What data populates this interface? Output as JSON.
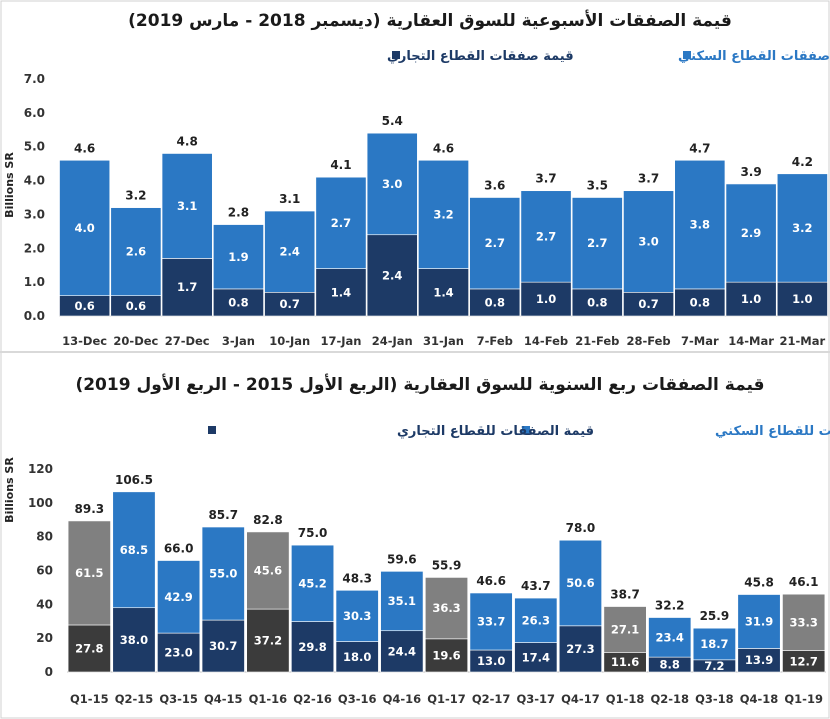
{
  "colors": {
    "residential": "#2b78c4",
    "commercial": "#1d3a66",
    "residential_q1": "#808080",
    "commercial_q1": "#3b3b3b",
    "axis": "#bfbfbf",
    "divider": "#d9d9d9"
  },
  "chart_data": [
    {
      "type": "bar",
      "stacked": true,
      "title": "قيمة الصفقات الأسبوعية للسوق العقارية (ديسمبر 2018 - مارس 2019)",
      "ylabel": "Billions SR",
      "ylim": [
        0,
        7
      ],
      "yticks": [
        "0.0",
        "1.0",
        "2.0",
        "3.0",
        "4.0",
        "5.0",
        "6.0",
        "7.0"
      ],
      "legend": [
        "قيمة صفقات القطاع السكني",
        "قيمة صفقات القطاع التجاري"
      ],
      "categories": [
        "13-Dec",
        "20-Dec",
        "27-Dec",
        "3-Jan",
        "10-Jan",
        "17-Jan",
        "24-Jan",
        "31-Jan",
        "7-Feb",
        "14-Feb",
        "21-Feb",
        "28-Feb",
        "7-Mar",
        "14-Mar",
        "21-Mar"
      ],
      "series": [
        {
          "name": "قيمة صفقات القطاع التجاري",
          "values": [
            0.6,
            0.6,
            1.7,
            0.8,
            0.7,
            1.4,
            2.4,
            1.4,
            0.8,
            1.0,
            0.8,
            0.7,
            0.8,
            1.0,
            1.0
          ]
        },
        {
          "name": "قيمة صفقات القطاع السكني",
          "values": [
            4.0,
            2.6,
            3.1,
            1.9,
            2.4,
            2.7,
            3.0,
            3.2,
            2.7,
            2.7,
            2.7,
            3.0,
            3.8,
            2.9,
            3.2
          ]
        }
      ],
      "totals": [
        4.6,
        3.2,
        4.8,
        2.8,
        3.1,
        4.1,
        5.4,
        4.6,
        3.6,
        3.7,
        3.5,
        3.7,
        4.7,
        3.9,
        4.2
      ],
      "grid": false,
      "legend_position": "top"
    },
    {
      "type": "bar",
      "stacked": true,
      "title": "قيمة الصفقات ربع السنوية للسوق العقارية (الربع الأول 2015 - الربع الأول 2019)",
      "ylabel": "Billions SR",
      "ylim": [
        0,
        120
      ],
      "yticks": [
        "0",
        "20",
        "40",
        "60",
        "80",
        "100",
        "120"
      ],
      "legend": [
        "قيمة الصفقات للقطاع السكني",
        "قيمة الصفقات للقطاع التجاري"
      ],
      "categories": [
        "Q1-15",
        "Q2-15",
        "Q3-15",
        "Q4-15",
        "Q1-16",
        "Q2-16",
        "Q3-16",
        "Q4-16",
        "Q1-17",
        "Q2-17",
        "Q3-17",
        "Q4-17",
        "Q1-18",
        "Q2-18",
        "Q3-18",
        "Q4-18",
        "Q1-19"
      ],
      "series": [
        {
          "name": "قيمة الصفقات للقطاع التجاري",
          "values": [
            27.8,
            38.0,
            23.0,
            30.7,
            37.2,
            29.8,
            18.0,
            24.4,
            19.6,
            13.0,
            17.4,
            27.3,
            11.6,
            8.8,
            7.2,
            13.9,
            12.7
          ]
        },
        {
          "name": "قيمة الصفقات للقطاع السكني",
          "values": [
            61.5,
            68.5,
            42.9,
            55.0,
            45.6,
            45.2,
            30.3,
            35.1,
            36.3,
            33.7,
            26.3,
            50.6,
            27.1,
            23.4,
            18.7,
            31.9,
            33.3
          ]
        }
      ],
      "totals": [
        89.3,
        106.5,
        66.0,
        85.7,
        82.8,
        75.0,
        48.3,
        59.6,
        55.9,
        46.6,
        43.7,
        78.0,
        38.7,
        32.2,
        25.9,
        45.8,
        46.1
      ],
      "highlight_q1": true,
      "grid": false,
      "legend_position": "top"
    }
  ]
}
